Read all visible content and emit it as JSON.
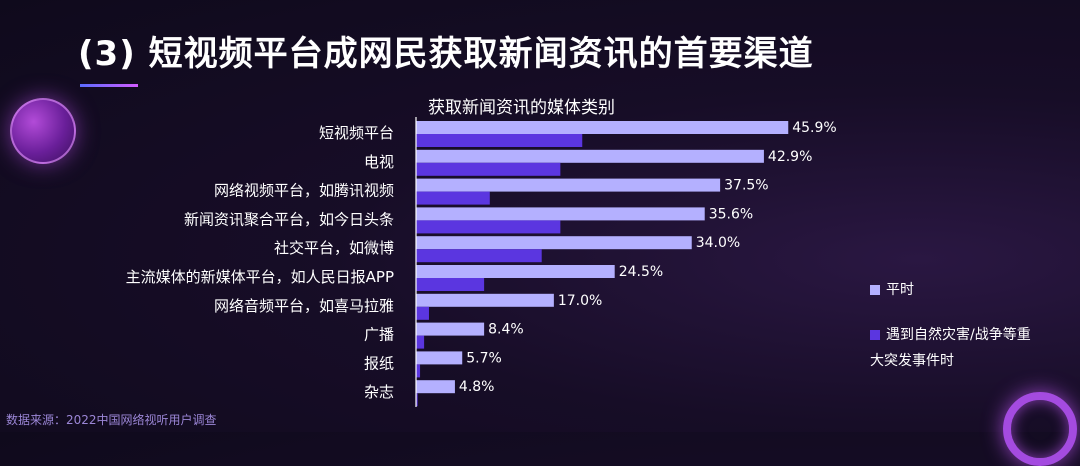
{
  "title": "(3) 短视频平台成网民获取新闻资讯的首要渠道",
  "source": "数据来源：2022中国网络视听用户调查",
  "chart_data": {
    "type": "bar",
    "orientation": "horizontal",
    "title": "获取新闻资讯的媒体类别",
    "categories": [
      "短视频平台",
      "电视",
      "网络视频平台，如腾讯视频",
      "新闻资讯聚合平台，如今日头条",
      "社交平台，如微博",
      "主流媒体的新媒体平台，如人民日报APP",
      "网络音频平台，如喜马拉雅",
      "广播",
      "报纸",
      "杂志"
    ],
    "series": [
      {
        "name": "平时",
        "color": "#b4b0ff",
        "values": [
          45.9,
          42.9,
          37.5,
          35.6,
          34.0,
          24.5,
          17.0,
          8.4,
          5.7,
          4.8
        ],
        "labels": [
          "45.9%",
          "42.9%",
          "37.5%",
          "35.6%",
          "34.0%",
          "24.5%",
          "17.0%",
          "8.4%",
          "5.7%",
          "4.8%"
        ]
      },
      {
        "name": "遇到自然灾害/战争等重大突发事件时",
        "color": "#5b36e0",
        "values": [
          20.5,
          17.8,
          9.1,
          17.8,
          15.5,
          8.4,
          1.6,
          1.0,
          0.5,
          0.2
        ]
      }
    ],
    "xlim": [
      0,
      50
    ],
    "legend_position": "right",
    "grid": false
  },
  "legend": {
    "item1": "平时",
    "item2_line1": "遇到自然灾害/战争等重",
    "item2_line2": "大突发事件时"
  }
}
